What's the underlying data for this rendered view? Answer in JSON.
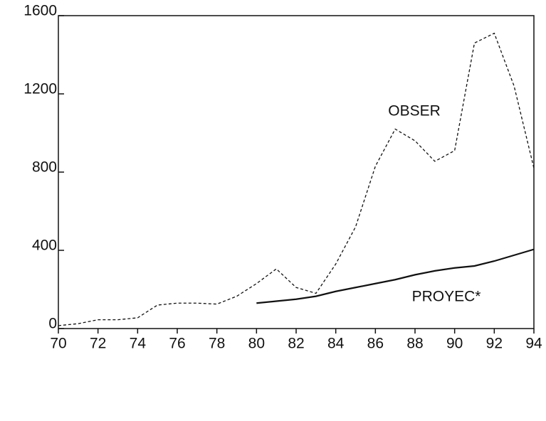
{
  "chart_data": {
    "type": "line",
    "x": [
      70,
      71,
      72,
      73,
      74,
      75,
      76,
      77,
      78,
      79,
      80,
      81,
      82,
      83,
      84,
      85,
      86,
      87,
      88,
      89,
      90,
      91,
      92,
      93,
      94
    ],
    "series": [
      {
        "name": "OBSER",
        "color": "#111111",
        "dashed": true,
        "values": [
          15,
          25,
          45,
          45,
          55,
          120,
          130,
          130,
          125,
          165,
          230,
          305,
          210,
          180,
          330,
          520,
          830,
          1020,
          960,
          855,
          910,
          1460,
          1510,
          1240,
          820
        ]
      },
      {
        "name": "PROYEC*",
        "color": "#111111",
        "dashed": false,
        "values": [
          null,
          null,
          null,
          null,
          null,
          null,
          null,
          null,
          null,
          null,
          130,
          140,
          150,
          165,
          190,
          210,
          230,
          250,
          275,
          295,
          310,
          320,
          345,
          375,
          405
        ]
      }
    ],
    "xlim": [
      70,
      94
    ],
    "xticks": [
      70,
      72,
      74,
      76,
      78,
      80,
      82,
      84,
      86,
      88,
      90,
      92,
      94
    ],
    "ylim": [
      0,
      1600
    ],
    "yticks": [
      0,
      400,
      800,
      1200,
      1600
    ]
  }
}
